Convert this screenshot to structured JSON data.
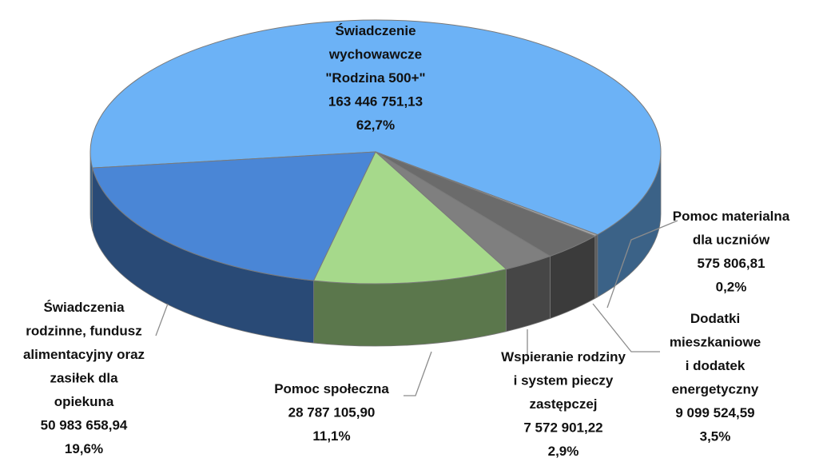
{
  "chart_data": {
    "type": "pie3d",
    "categories": [
      "Świadczenie wychowawcze \"Rodzina 500+\"",
      "Pomoc materialna dla uczniów",
      "Dodatki mieszkaniowe i dodatek energetyczny",
      "Wspieranie rodziny i system pieczy zastępczej",
      "Pomoc społeczna",
      "Świadczenia rodzinne, fundusz alimentacyjny oraz zasiłek dla opiekuna"
    ],
    "values": [
      163446751.13,
      575806.81,
      9099524.59,
      7572901.22,
      28787105.9,
      50983658.94
    ],
    "value_labels": [
      "163 446 751,13",
      "575 806,81",
      "9 099 524,59",
      "7 572 901,22",
      "28 787 105,90",
      "50 983 658,94"
    ],
    "percentages": [
      62.7,
      0.2,
      3.5,
      2.9,
      11.1,
      19.6
    ],
    "percentage_labels": [
      "62,7%",
      "0,2%",
      "3,5%",
      "2,9%",
      "11,1%",
      "19,6%"
    ],
    "colors": [
      "#6cb2f6",
      "#a9a9a9",
      "#6b6b6b",
      "#7f7f7f",
      "#a6d98b",
      "#4a86d6"
    ]
  }
}
